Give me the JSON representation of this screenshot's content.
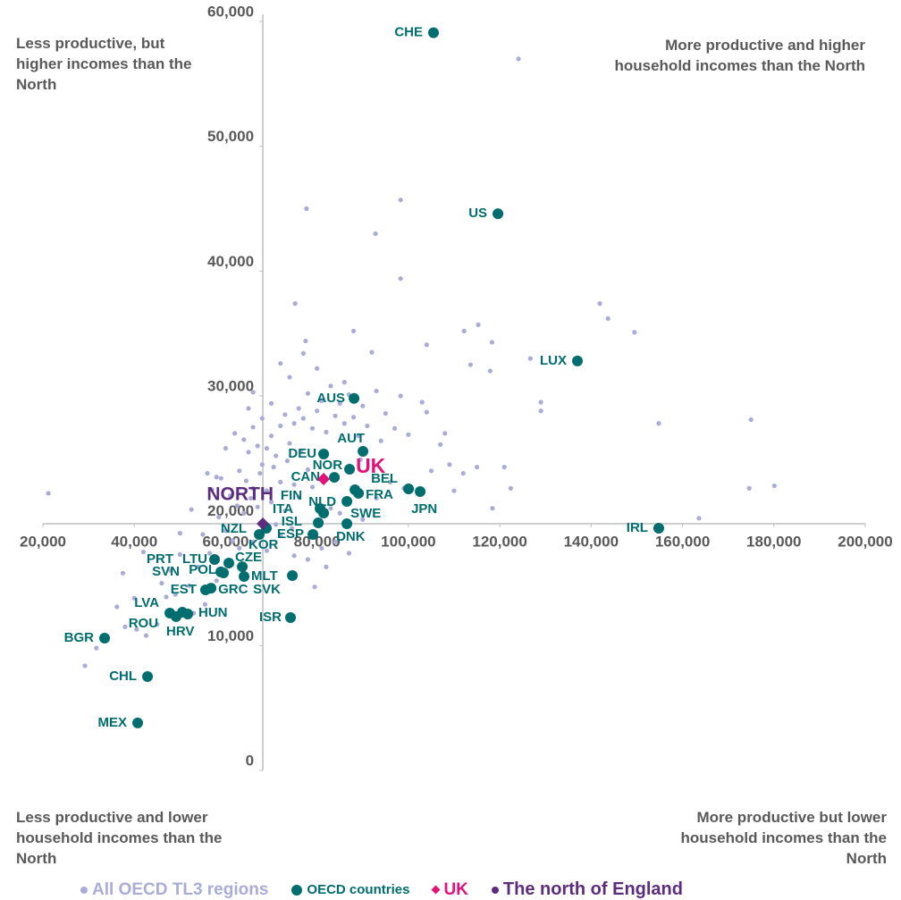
{
  "chart_data": {
    "type": "scatter",
    "xlim": [
      20000,
      200000
    ],
    "ylim": [
      0,
      60000
    ],
    "xticks": [
      {
        "value": 20000,
        "label": "20,000"
      },
      {
        "value": 40000,
        "label": "40,000"
      },
      {
        "value": 60000,
        "label": "60,000"
      },
      {
        "value": 80000,
        "label": "80,000"
      },
      {
        "value": 100000,
        "label": "100,000"
      },
      {
        "value": 120000,
        "label": "120,000"
      },
      {
        "value": 140000,
        "label": "140,000"
      },
      {
        "value": 160000,
        "label": "160,000"
      },
      {
        "value": 180000,
        "label": "180,000"
      },
      {
        "value": 200000,
        "label": "200,000"
      }
    ],
    "yticks": [
      0,
      {
        "value": 10000,
        "label": "10,000"
      },
      {
        "value": 20000,
        "label": "20,000"
      },
      {
        "value": 30000,
        "label": "30,000"
      },
      {
        "value": 40000,
        "label": "40,000"
      },
      {
        "value": 50000,
        "label": "50,000"
      },
      {
        "value": 60000,
        "label": "60,000"
      }
    ],
    "annotations": [
      {
        "text": "Less productive, but higher incomes than the North",
        "position": "top-left"
      },
      {
        "text": "More productive and higher household incomes than the North",
        "position": "top-right"
      },
      {
        "text": "Less productive and lower household incomes than the North",
        "position": "bottom-left"
      },
      {
        "text": "More productive but lower household incomes than the North",
        "position": "bottom-right"
      }
    ],
    "series": [
      {
        "name": "All OECD TL3 regions",
        "color": "#aaacd8",
        "marker": "circle",
        "x": [
          62000,
          64000,
          65000,
          66000,
          67000,
          68000,
          69000,
          70000,
          71000,
          72000,
          73000,
          74000,
          75000,
          76000,
          77000,
          78000,
          79000,
          80000,
          81000,
          82000,
          83000,
          84000,
          85000,
          86000,
          87000,
          88000,
          89000,
          90000,
          91000,
          93000,
          95000,
          97000,
          63000,
          64500,
          66000,
          67500,
          69000,
          70500,
          72000,
          73500,
          75000,
          76500,
          78000,
          61000,
          62500,
          64000,
          65500,
          67000,
          70000,
          73000,
          76000,
          79000,
          57000,
          58500,
          60000,
          61500,
          63000,
          66000,
          69000,
          72000,
          75000,
          78000,
          81000,
          84000,
          87000,
          90000,
          93000,
          96000,
          100000,
          55000,
          56500,
          58000,
          54000,
          52000,
          50000,
          49000,
          53000,
          55500,
          47000,
          45000,
          66000,
          70000,
          74000,
          80000,
          86000,
          68000,
          65000,
          60000,
          59000,
          71000,
          74500,
          83000,
          89500,
          94000,
          99000,
          104000,
          107000,
          110000,
          72000,
          77000,
          92000,
          88000,
          82000,
          79500,
          85000,
          21200,
          124100,
          77700,
          98300,
          92800,
          98300,
          141900,
          143700,
          149500,
          115300,
          112200,
          118300,
          126700,
          113600,
          117900,
          104000,
          75200,
          77500,
          129000,
          129000,
          154800,
          175000,
          174600,
          180100,
          163600,
          122400,
          118400,
          121000,
          115000,
          112000,
          109000,
          105000,
          108000,
          103000,
          98300,
          29200,
          31700,
          38000,
          36200,
          40000,
          42600,
          40500,
          37500,
          42000,
          46000,
          48000,
          50000,
          52500,
          56000,
          58000
        ],
        "values": [
          27000,
          26500,
          25500,
          27500,
          26000,
          24500,
          25800,
          26800,
          25200,
          27600,
          28500,
          26200,
          27800,
          29000,
          28200,
          30200,
          27400,
          28800,
          29600,
          27100,
          30800,
          28400,
          29400,
          27800,
          30100,
          28300,
          26800,
          29200,
          27600,
          30400,
          28600,
          27400,
          24000,
          23200,
          22600,
          23800,
          22400,
          24300,
          23100,
          24800,
          22900,
          25600,
          24100,
          22000,
          21200,
          20600,
          21800,
          21100,
          21500,
          20800,
          21900,
          22700,
          22500,
          20300,
          19200,
          18400,
          17800,
          18300,
          17600,
          18800,
          17200,
          16900,
          17800,
          18300,
          17400,
          20100,
          21800,
          23100,
          26900,
          18900,
          17400,
          15200,
          16300,
          14800,
          17300,
          14100,
          12600,
          13300,
          13900,
          11700,
          30300,
          29400,
          31500,
          32200,
          31100,
          28200,
          29000,
          25800,
          23400,
          19700,
          19400,
          21000,
          24900,
          26400,
          22600,
          28700,
          26100,
          22400,
          32600,
          33400,
          33500,
          35200,
          16300,
          14700,
          20600,
          22200,
          57000,
          45000,
          45700,
          43000,
          39400,
          37400,
          36200,
          35100,
          35700,
          35200,
          34300,
          33000,
          32500,
          32000,
          34100,
          37400,
          34400,
          29500,
          28800,
          27800,
          28100,
          22600,
          22800,
          20200,
          22600,
          21000,
          24300,
          24300,
          23800,
          24500,
          24000,
          27000,
          29500,
          30000,
          8380,
          9800,
          11500,
          13100,
          13800,
          10800,
          11300,
          15800,
          17500,
          15000,
          16000,
          19000,
          20900,
          23800,
          23500
        ]
      },
      {
        "name": "OECD countries",
        "color": "#006d6f",
        "marker": "circle",
        "labels": [
          "CHE",
          "US",
          "LUX",
          "AUS",
          "AUT",
          "DEU",
          "NOR",
          "CAN",
          "BEL",
          "JPN",
          "FIN",
          "FRA",
          "NLD",
          "ITA",
          "SWE",
          "ISL",
          "ESP",
          "DNK",
          "NZL",
          "KOR",
          "CZE",
          "LTU",
          "PRT",
          "POL",
          "SVN",
          "MLT",
          "SVK",
          "EST",
          "GRC",
          "HUN",
          "LVA",
          "HRV",
          "ROU",
          "ISR",
          "BGR",
          "CHL",
          "MEX",
          "IRL"
        ],
        "x": [
          105500,
          119600,
          137000,
          88100,
          90060,
          81450,
          87120,
          83800,
          100040,
          102580,
          80670,
          89080,
          86540,
          81450,
          88300,
          80280,
          79100,
          86540,
          67360,
          68920,
          63640,
          57570,
          60700,
          59530,
          58940,
          64030,
          74600,
          55600,
          56800,
          51700,
          47790,
          50530,
          49160,
          74200,
          33500,
          42900,
          40740,
          154800
        ],
        "values": [
          59100,
          44600,
          32800,
          29800,
          25560,
          25350,
          24130,
          23480,
          22550,
          22340,
          20980,
          22200,
          21550,
          20620,
          22480,
          19830,
          18900,
          19760,
          18900,
          19400,
          16320,
          16900,
          16610,
          15820,
          15900,
          15540,
          15610,
          14460,
          14600,
          12530,
          12600,
          12670,
          12320,
          12240,
          10600,
          7520,
          3800,
          19400
        ]
      },
      {
        "name": "UK",
        "color": "#e2127b",
        "marker": "diamond",
        "labels": [
          "UK"
        ],
        "x": [
          81450
        ],
        "values": [
          23340
        ]
      },
      {
        "name": "The north of England",
        "color": "#5c2d7e",
        "marker": "diamond",
        "labels": [
          "NORTH"
        ],
        "x": [
          68140
        ],
        "values": [
          19760
        ]
      }
    ]
  }
}
